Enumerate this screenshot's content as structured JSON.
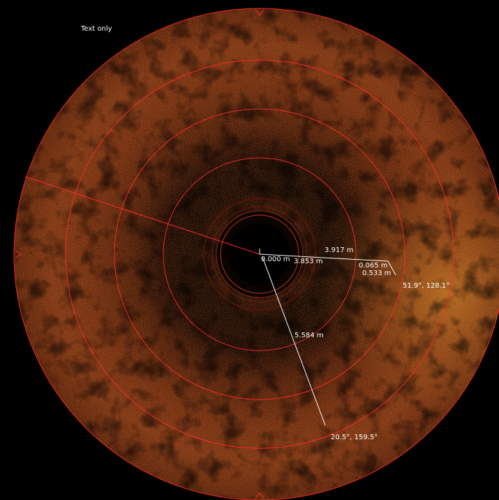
{
  "display_mode": {
    "label": "Text only"
  },
  "colors": {
    "background": "#000000",
    "sonar_bright": "#e0902a",
    "sonar_mid": "#8a3a12",
    "sonar_dark": "#2a0c04",
    "range_rings": "#ff2a2a",
    "measure_lines": "#ffffff",
    "text": "#ffffff"
  },
  "measurements": {
    "origin": "0.000 m",
    "line_a": {
      "length": "3.917 m",
      "inner_length": "3.853 m",
      "offset_a": "0.065 m",
      "offset_b": "0.533 m",
      "end_angles": "51.9°, 128.1°"
    },
    "line_b": {
      "length": "5.584 m",
      "end_angles": "20.5°, 159.5°"
    }
  }
}
